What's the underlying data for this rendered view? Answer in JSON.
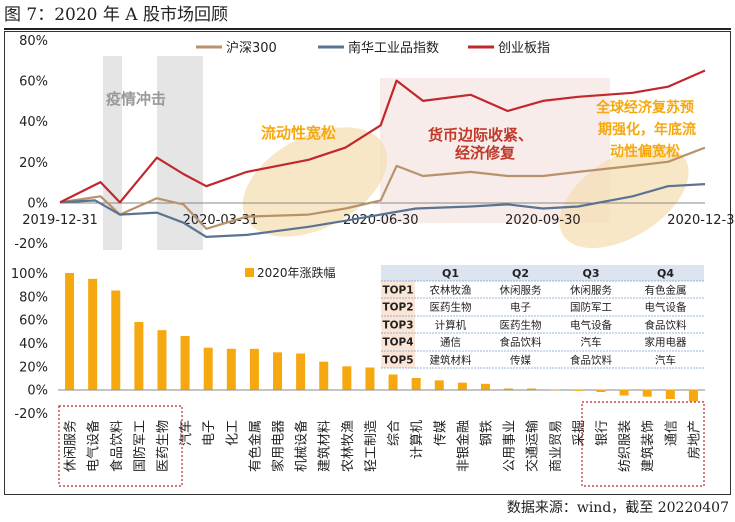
{
  "figure_title": "图 7：2020 年 A 股市场回顾",
  "source": "数据来源：wind，截至 20220407",
  "chart_data": [
    {
      "type": "line",
      "title": "",
      "legend_position": "top",
      "ylim": [
        -20,
        80
      ],
      "y_ticks": [
        "-20%",
        "0%",
        "20%",
        "40%",
        "60%",
        "80%"
      ],
      "x_ticks": [
        "2019-12-31",
        "2020-03-31",
        "2020-06-30",
        "2020-09-30",
        "2020-12-31"
      ],
      "annotations": [
        "疫情冲击",
        "流动性宽松",
        "货币边际收紧、经济修复",
        "全球经济复苏预期强化，年底流动性偏宽松"
      ],
      "series": [
        {
          "name": "沪深300",
          "color": "#b8926b",
          "x": [
            "2019-12-31",
            "2020-01-23",
            "2020-02-03",
            "2020-02-24",
            "2020-03-10",
            "2020-03-23",
            "2020-04-15",
            "2020-05-20",
            "2020-06-10",
            "2020-06-30",
            "2020-07-09",
            "2020-07-24",
            "2020-08-20",
            "2020-09-10",
            "2020-09-30",
            "2020-10-20",
            "2020-11-20",
            "2020-12-10",
            "2020-12-31"
          ],
          "values": [
            0,
            3,
            -6,
            2,
            -1,
            -13,
            -7,
            -6,
            -3,
            1,
            18,
            13,
            15,
            13,
            13,
            15,
            18,
            20,
            27
          ]
        },
        {
          "name": "南华工业品指数",
          "color": "#5a7391",
          "x": [
            "2019-12-31",
            "2020-01-20",
            "2020-02-03",
            "2020-02-24",
            "2020-03-10",
            "2020-03-23",
            "2020-04-15",
            "2020-05-20",
            "2020-06-10",
            "2020-06-30",
            "2020-07-20",
            "2020-08-20",
            "2020-09-10",
            "2020-09-30",
            "2020-10-20",
            "2020-11-20",
            "2020-12-10",
            "2020-12-31"
          ],
          "values": [
            0,
            1,
            -6,
            -5,
            -10,
            -17,
            -16,
            -12,
            -9,
            -6,
            -3,
            -2,
            -1,
            -3,
            -2,
            3,
            8,
            9
          ]
        },
        {
          "name": "创业板指",
          "color": "#c1272d",
          "x": [
            "2019-12-31",
            "2020-01-23",
            "2020-02-03",
            "2020-02-24",
            "2020-03-10",
            "2020-03-23",
            "2020-04-15",
            "2020-05-20",
            "2020-06-10",
            "2020-06-30",
            "2020-07-09",
            "2020-07-24",
            "2020-08-20",
            "2020-09-10",
            "2020-09-30",
            "2020-10-20",
            "2020-11-20",
            "2020-12-10",
            "2020-12-31"
          ],
          "values": [
            0,
            10,
            0,
            22,
            14,
            8,
            15,
            21,
            27,
            38,
            60,
            50,
            53,
            45,
            50,
            52,
            54,
            57,
            65
          ]
        }
      ]
    },
    {
      "type": "bar",
      "title": "",
      "legend_position": "top-left",
      "ylim": [
        -20,
        100
      ],
      "y_ticks": [
        "-20%",
        "0%",
        "20%",
        "40%",
        "60%",
        "80%",
        "100%"
      ],
      "series": [
        {
          "name": "2020年涨跌幅",
          "color": "#f5a80f"
        }
      ],
      "categories": [
        "休闲服务",
        "电气设备",
        "食品饮料",
        "国防军工",
        "医药生物",
        "汽车",
        "电子",
        "化工",
        "有色金属",
        "家用电器",
        "机械设备",
        "建筑材料",
        "农林牧渔",
        "轻工制造",
        "综合",
        "计算机",
        "传媒",
        "非银金融",
        "钢铁",
        "公用事业",
        "交通运输",
        "商业贸易",
        "采掘",
        "银行",
        "纺织服装",
        "建筑装饰",
        "通信",
        "房地产"
      ],
      "values": [
        100,
        95,
        85,
        58,
        51,
        46,
        36,
        35,
        35,
        32,
        31,
        24,
        20,
        19,
        13,
        10,
        8,
        6,
        5,
        1,
        1,
        0,
        -1,
        -2,
        -5,
        -6,
        -8,
        -10
      ],
      "table": {
        "headers": [
          "",
          "Q1",
          "Q2",
          "Q3",
          "Q4"
        ],
        "rows": [
          [
            "TOP1",
            "农林牧渔",
            "休闲服务",
            "休闲服务",
            "有色金属"
          ],
          [
            "TOP2",
            "医药生物",
            "电子",
            "国防军工",
            "电气设备"
          ],
          [
            "TOP3",
            "计算机",
            "医药生物",
            "电气设备",
            "食品饮料"
          ],
          [
            "TOP4",
            "通信",
            "食品饮料",
            "汽车",
            "家用电器"
          ],
          [
            "TOP5",
            "建筑材料",
            "传媒",
            "食品饮料",
            "汽车"
          ]
        ]
      }
    }
  ]
}
